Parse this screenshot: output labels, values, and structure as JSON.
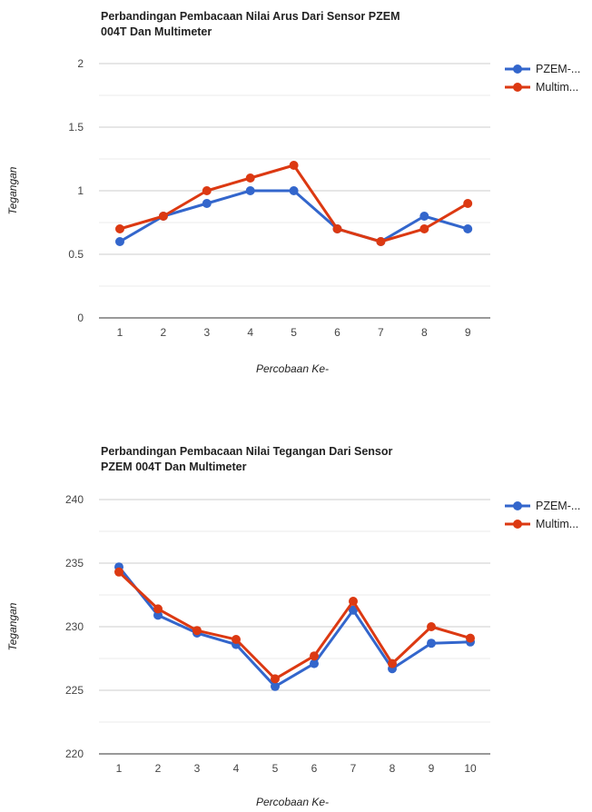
{
  "chart_data": [
    {
      "type": "line",
      "title_lines": [
        "Perbandingan Pembacaan Nilai Arus Dari Sensor PZEM",
        "004T Dan Multimeter"
      ],
      "xlabel": "Percobaan Ke-",
      "ylabel": "Tegangan",
      "categories": [
        "1",
        "2",
        "3",
        "4",
        "5",
        "6",
        "7",
        "8",
        "9"
      ],
      "ylim": [
        0,
        2
      ],
      "yticks": [
        "0",
        "0.5",
        "1",
        "1.5",
        "2"
      ],
      "grid": true,
      "legend_position": "right",
      "series": [
        {
          "name": "PZEM-...",
          "color": "#3366cc",
          "values": [
            0.6,
            0.8,
            0.9,
            1.0,
            1.0,
            0.7,
            0.6,
            0.8,
            0.7
          ]
        },
        {
          "name": "Multim...",
          "color": "#dc3912",
          "values": [
            0.7,
            0.8,
            1.0,
            1.1,
            1.2,
            0.7,
            0.6,
            0.7,
            0.9
          ]
        }
      ]
    },
    {
      "type": "line",
      "title_lines": [
        "Perbandingan Pembacaan Nilai Tegangan Dari Sensor",
        "PZEM 004T Dan Multimeter"
      ],
      "xlabel": "Percobaan Ke-",
      "ylabel": "Tegangan",
      "categories": [
        "1",
        "2",
        "3",
        "4",
        "5",
        "6",
        "7",
        "8",
        "9",
        "10"
      ],
      "ylim": [
        220,
        240
      ],
      "yticks": [
        "220",
        "225",
        "230",
        "235",
        "240"
      ],
      "grid": true,
      "legend_position": "right",
      "series": [
        {
          "name": "PZEM-...",
          "color": "#3366cc",
          "values": [
            234.7,
            230.9,
            229.5,
            228.6,
            225.3,
            227.1,
            231.3,
            226.7,
            228.7,
            228.8
          ]
        },
        {
          "name": "Multim...",
          "color": "#dc3912",
          "values": [
            234.3,
            231.4,
            229.7,
            229.0,
            225.9,
            227.7,
            232.0,
            227.1,
            230.0,
            229.1
          ]
        }
      ]
    }
  ]
}
